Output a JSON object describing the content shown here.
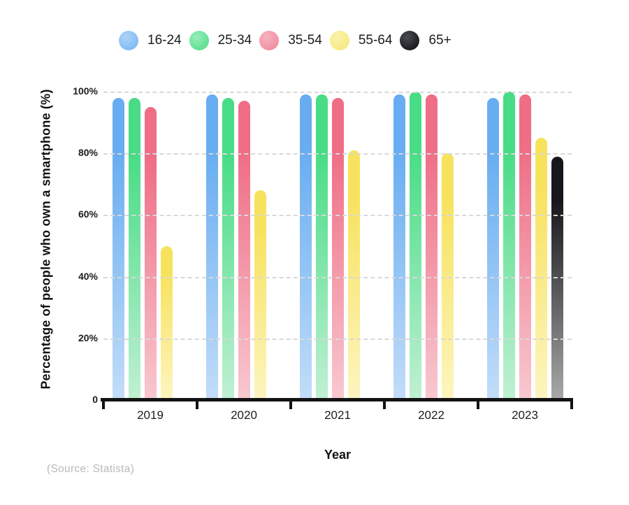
{
  "page": {
    "background": "#ffffff",
    "source_note": "(Source: Statista)"
  },
  "chart_data": {
    "type": "bar",
    "title": "",
    "xlabel": "Year",
    "ylabel": "Percentage of people who own a smartphone (%)",
    "categories": [
      "2019",
      "2020",
      "2021",
      "2022",
      "2023"
    ],
    "series": [
      {
        "name": "16-24",
        "values": [
          98,
          99,
          99,
          99,
          98
        ],
        "color": "#68adf1",
        "color_fade": "#c2ddf9",
        "dot": "#7fbbf3",
        "dot_light": "#aed3f8"
      },
      {
        "name": "25-34",
        "values": [
          98,
          98,
          99,
          100,
          100
        ],
        "color": "#47dc85",
        "color_fade": "#c0f0d3",
        "dot": "#5cdf90",
        "dot_light": "#96edba"
      },
      {
        "name": "35-54",
        "values": [
          95,
          97,
          98,
          99,
          99
        ],
        "color": "#ef6e86",
        "color_fade": "#f8c8d0",
        "dot": "#f28ca0",
        "dot_light": "#f7b4c1"
      },
      {
        "name": "55-64",
        "values": [
          50,
          68,
          81,
          80,
          85
        ],
        "color": "#f7e25e",
        "color_fade": "#fdf5c0",
        "dot": "#f8e97e",
        "dot_light": "#fbf2ae"
      },
      {
        "name": "65+",
        "values": [
          null,
          null,
          null,
          null,
          79
        ],
        "color": "#16161c",
        "color_fade": "#a9a9a9",
        "dot": "#17171d",
        "dot_light": "#4c4c54"
      }
    ],
    "ylim": [
      0,
      100
    ],
    "yticks": [
      {
        "label": "100%",
        "value": 100
      },
      {
        "label": "80%",
        "value": 80
      },
      {
        "label": "60%",
        "value": 60
      },
      {
        "label": "40%",
        "value": 40
      },
      {
        "label": "20%",
        "value": 20
      },
      {
        "label": "0",
        "value": 0
      }
    ],
    "grid": {
      "style": "dashed",
      "color": "#d9d9d9",
      "lines": [
        100,
        80,
        60,
        40,
        20
      ]
    },
    "legend_position": "top"
  }
}
